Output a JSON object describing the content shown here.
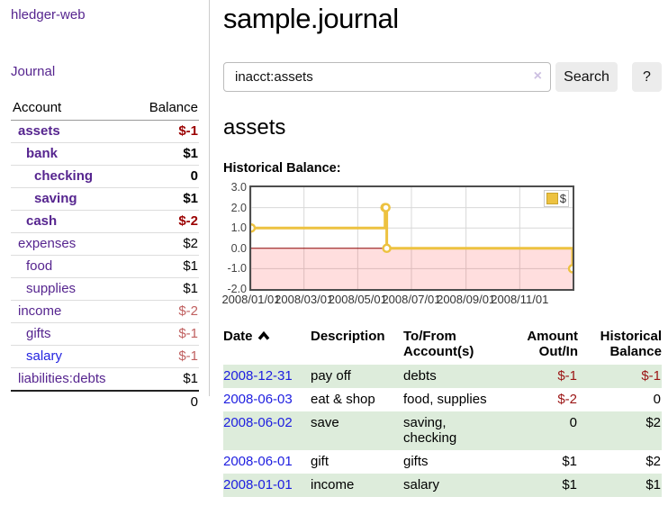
{
  "colors": {
    "link_purple": "#56258f",
    "link_blue": "#2424e0",
    "negative_strong": "#9b0000",
    "negative_soft": "#c06060",
    "row_stripe_green": "#ddecdb",
    "chart_line": "#edc240",
    "chart_zero_line": "#8b0000",
    "chart_negative_shade": "rgba(255,0,0,0.13)"
  },
  "sidebar": {
    "app_title": "hledger-web",
    "journal_link": "Journal",
    "table": {
      "headers": {
        "account": "Account",
        "balance": "Balance"
      },
      "rows": [
        {
          "account": "assets",
          "balance": "$-1"
        },
        {
          "account": "bank",
          "balance": "$1"
        },
        {
          "account": "checking",
          "balance": "0"
        },
        {
          "account": "saving",
          "balance": "$1"
        },
        {
          "account": "cash",
          "balance": "$-2"
        },
        {
          "account": "expenses",
          "balance": "$2"
        },
        {
          "account": "food",
          "balance": "$1"
        },
        {
          "account": "supplies",
          "balance": "$1"
        },
        {
          "account": "income",
          "balance": "$-2"
        },
        {
          "account": "gifts",
          "balance": "$-1"
        },
        {
          "account": "salary",
          "balance": "$-1"
        },
        {
          "account": "liabilities:debts",
          "balance": "$1"
        }
      ],
      "total": "0"
    }
  },
  "main": {
    "title": "sample.journal",
    "search": {
      "value": "inacct:assets",
      "clear_icon": "×",
      "search_button": "Search",
      "help_button": "?"
    },
    "account_heading": "assets",
    "chart_label": "Historical Balance:"
  },
  "chart_data": {
    "type": "line",
    "title": "Historical Balance",
    "steps": true,
    "x_range": [
      "2008-01-01",
      "2008-12-31"
    ],
    "ylim": [
      -2,
      3
    ],
    "y_ticks": [
      3,
      2,
      1,
      0,
      -1,
      -2
    ],
    "y_tick_labels": [
      "3.0",
      "2.0",
      "1.0",
      "0.0",
      "-1.0",
      "-2.0"
    ],
    "y_gridlines": [
      2,
      1,
      -1
    ],
    "x_tick_dates": [
      "2008-01-01",
      "2008-03-01",
      "2008-05-01",
      "2008-07-01",
      "2008-09-01",
      "2008-11-01"
    ],
    "x_tick_labels": [
      "2008/01/01",
      "2008/03/01",
      "2008/05/01",
      "2008/07/01",
      "2008/09/01",
      "2008/11/01"
    ],
    "legend": {
      "label": "$",
      "position": "top-right"
    },
    "negative_shade": true,
    "series": [
      {
        "name": "$",
        "color": "#edc240",
        "points": [
          {
            "x": "2008-01-01",
            "y": 1
          },
          {
            "x": "2008-06-01",
            "y": 2
          },
          {
            "x": "2008-06-02",
            "y": 2
          },
          {
            "x": "2008-06-03",
            "y": 0
          },
          {
            "x": "2008-12-31",
            "y": -1
          }
        ]
      }
    ]
  },
  "register": {
    "headers": {
      "date": "Date",
      "description": "Description",
      "accounts": "To/From Account(s)",
      "amount": "Amount Out/In",
      "balance": "Historical Balance"
    },
    "rows": [
      {
        "date": "2008-12-31",
        "description": "pay off",
        "accounts": "debts",
        "amount": "$-1",
        "balance": "$-1"
      },
      {
        "date": "2008-06-03",
        "description": "eat & shop",
        "accounts": "food, supplies",
        "amount": "$-2",
        "balance": "0"
      },
      {
        "date": "2008-06-02",
        "description": "save",
        "accounts": "saving, checking",
        "amount": "0",
        "balance": "$2"
      },
      {
        "date": "2008-06-01",
        "description": "gift",
        "accounts": "gifts",
        "amount": "$1",
        "balance": "$2"
      },
      {
        "date": "2008-01-01",
        "description": "income",
        "accounts": "salary",
        "amount": "$1",
        "balance": "$1"
      }
    ]
  }
}
